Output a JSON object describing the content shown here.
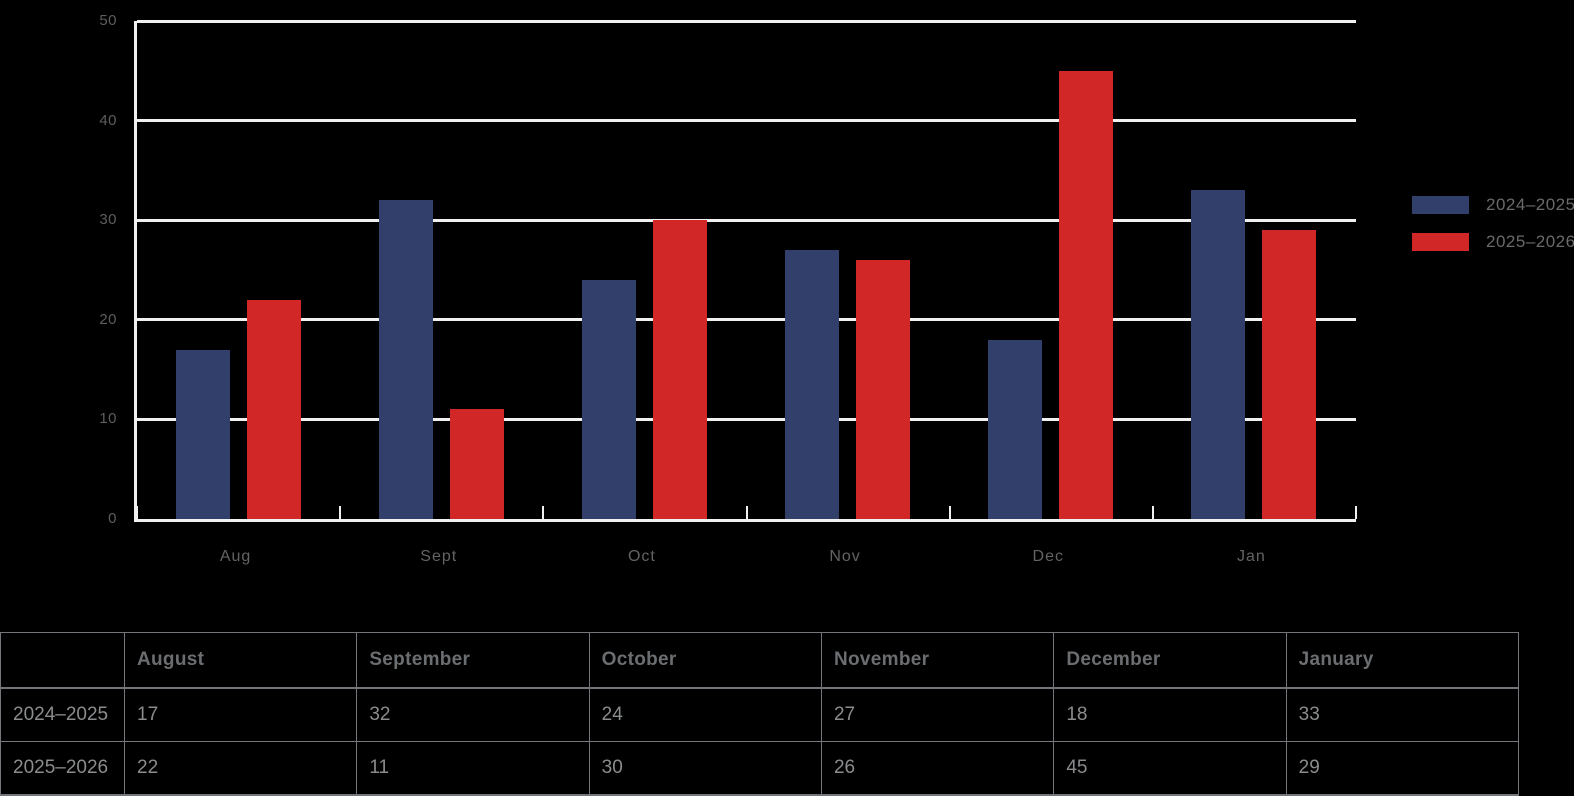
{
  "colors": {
    "background": "#000000",
    "grid": "#F0F0F0",
    "series1": "#333F6B",
    "series2": "#D22727",
    "axis_text": "#5E5E5E",
    "legend_text": "#6A6A6A",
    "table_border": "#73767A",
    "table_header_text": "#6B6E71",
    "table_value_text": "#8A8C8E"
  },
  "chart_data": {
    "type": "bar",
    "title": "",
    "xlabel": "",
    "ylabel": "",
    "categories": [
      "Aug",
      "Sept",
      "Oct",
      "Nov",
      "Dec",
      "Jan"
    ],
    "series": [
      {
        "name": "2024–2025",
        "color": "#333F6B",
        "values": [
          17,
          32,
          24,
          27,
          18,
          33
        ]
      },
      {
        "name": "2025–2026",
        "color": "#D22727",
        "values": [
          22,
          11,
          30,
          26,
          45,
          29
        ]
      }
    ],
    "ylim": [
      0,
      50
    ],
    "yticks": [
      0,
      10,
      20,
      30,
      40,
      50
    ],
    "grid": true,
    "legend_position": "right"
  },
  "legend": {
    "items": [
      {
        "label": "2024–2025",
        "color": "#333F6B"
      },
      {
        "label": "2025–2026",
        "color": "#D22727"
      }
    ]
  },
  "table": {
    "columns": [
      "",
      "August",
      "September",
      "October",
      "November",
      "December",
      "January"
    ],
    "rows": [
      {
        "label": "2024–2025",
        "values": [
          "17",
          "32",
          "24",
          "27",
          "18",
          "33"
        ]
      },
      {
        "label": "2025–2026",
        "values": [
          "22",
          "11",
          "30",
          "26",
          "45",
          "29"
        ]
      }
    ]
  }
}
